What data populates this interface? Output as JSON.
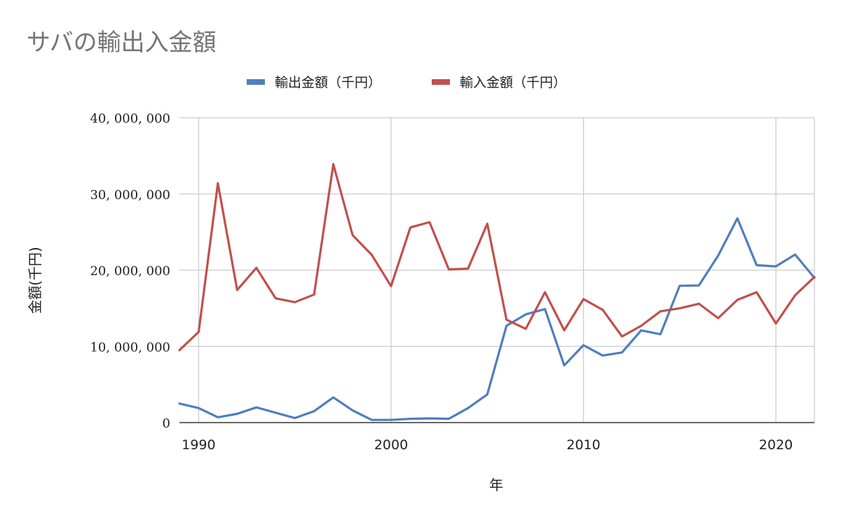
{
  "chart_data": {
    "type": "line",
    "title": "サバの輸出入金額",
    "xlabel": "年",
    "ylabel": "金額(千円)",
    "xlim": [
      1989,
      2022
    ],
    "ylim": [
      0,
      40000000
    ],
    "x_ticks": [
      1990,
      2000,
      2010,
      2020
    ],
    "y_ticks": [
      0,
      10000000,
      20000000,
      30000000,
      40000000
    ],
    "y_tick_labels": [
      "0",
      "10, 000, 000",
      "20, 000, 000",
      "30, 000, 000",
      "40, 000, 000"
    ],
    "grid": true,
    "legend_position": "top",
    "x": [
      1989,
      1990,
      1991,
      1992,
      1993,
      1994,
      1995,
      1996,
      1997,
      1998,
      1999,
      2000,
      2001,
      2002,
      2003,
      2004,
      2005,
      2006,
      2007,
      2008,
      2009,
      2010,
      2011,
      2012,
      2013,
      2014,
      2015,
      2016,
      2017,
      2018,
      2019,
      2020,
      2021,
      2022
    ],
    "series": [
      {
        "name": "輸出金額（千円）",
        "color": "#4e7fbc",
        "values": [
          2500000,
          1900000,
          700000,
          1150000,
          2000000,
          1300000,
          600000,
          1500000,
          3300000,
          1600000,
          350000,
          350000,
          500000,
          550000,
          500000,
          1900000,
          3700000,
          12700000,
          14200000,
          14900000,
          7500000,
          10150000,
          8800000,
          9200000,
          12100000,
          11600000,
          17950000,
          18000000,
          21900000,
          26800000,
          20650000,
          20500000,
          22050000,
          19000000
        ]
      },
      {
        "name": "輸入金額（千円）",
        "color": "#c0504d",
        "values": [
          9500000,
          11900000,
          31400000,
          17400000,
          20300000,
          16300000,
          15800000,
          16800000,
          33900000,
          24600000,
          22000000,
          17900000,
          25600000,
          26300000,
          20100000,
          20200000,
          26100000,
          13500000,
          12300000,
          17100000,
          12100000,
          16200000,
          14800000,
          11300000,
          12700000,
          14600000,
          15000000,
          15600000,
          13700000,
          16100000,
          17100000,
          13000000,
          16700000,
          19100000
        ]
      }
    ]
  }
}
